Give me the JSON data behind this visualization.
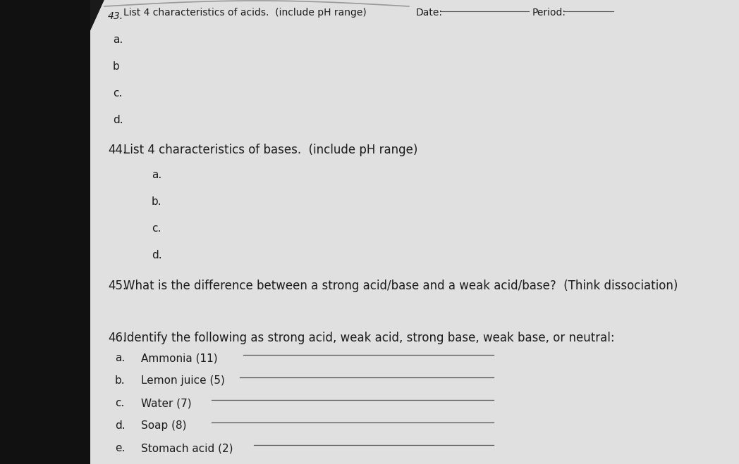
{
  "outer_bg": "#1a1a1a",
  "paper_color": "#dcdcdc",
  "left_dark_color": "#222222",
  "text_color": "#1c1c1c",
  "line_color": "#555555",
  "q43_num": "43.",
  "q43_text": "List 4 characteristics of acids. (include pH range)",
  "date_label": "Date:",
  "period_label": "Period:",
  "q43_items": [
    "a.",
    "b",
    "c.",
    "d."
  ],
  "q44_num": "44.",
  "q44_text": "List 4 characteristics of bases. (include pH range)",
  "q44_items": [
    "a.",
    "b.",
    "c.",
    "d."
  ],
  "q45_num": "45.",
  "q45_text": "What is the difference between a strong acid/base and a weak acid/base?  (Think dissociation)",
  "q46_num": "46.",
  "q46_text": "Identify the following as strong acid, weak acid, strong base, weak base, or neutral:",
  "q46_labels": [
    "a.",
    "b.",
    "c.",
    "d.",
    "e."
  ],
  "q46_items": [
    "Ammonia (11)",
    "Lemon juice (5)",
    "Water (7)",
    "Soap (8)",
    "Stomach acid (2)"
  ],
  "fs_main": 12,
  "fs_sub": 11,
  "fs_small": 10
}
